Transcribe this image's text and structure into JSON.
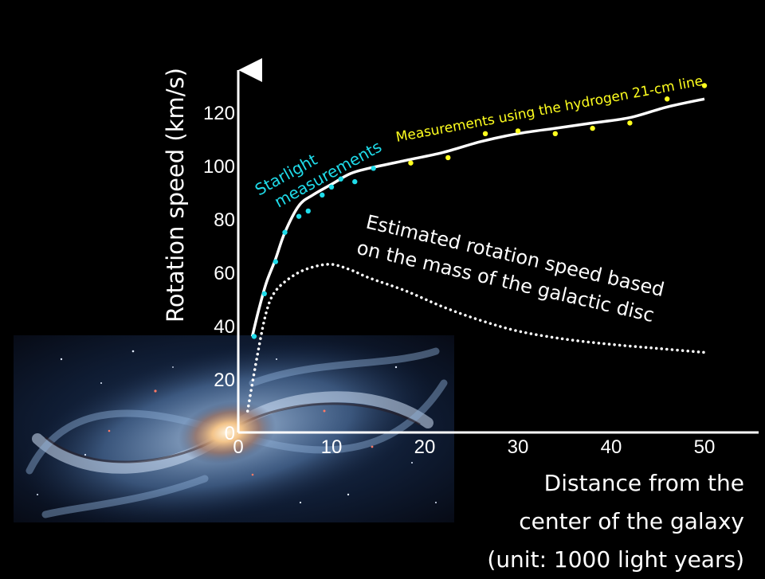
{
  "colors": {
    "background": "#000000",
    "axis": "#ffffff",
    "observed_curve": "#ffffff",
    "starlight_points": "#1fdcea",
    "hydrogen_points": "#ffff1e",
    "estimated_curve": "#ffffff"
  },
  "chart_data": {
    "type": "line",
    "title": "",
    "xlabel": "Distance from the\ncenter of the galaxy\n(unit: 1000 light years)",
    "ylabel": "Rotation speed (km/s)",
    "xlim": [
      0,
      50
    ],
    "ylim": [
      0,
      130
    ],
    "x_ticks": [
      0,
      10,
      20,
      30,
      40,
      50
    ],
    "y_ticks": [
      0,
      20,
      40,
      60,
      80,
      100,
      120
    ],
    "grid": false,
    "annotations": {
      "starlight": "Starlight\nmeasurements",
      "hydrogen": "Measurements using the hydrogen 21-cm line",
      "estimated": "Estimated rotation speed based\non the mass of the galactic disc"
    },
    "series": [
      {
        "style": "solid-line",
        "x": [
          1.5,
          2.2,
          3,
          4,
          5,
          6.5,
          8,
          10,
          12,
          14,
          18,
          22,
          26,
          30,
          34,
          38,
          42,
          46,
          50
        ],
        "y": [
          36,
          46,
          56,
          65,
          75,
          85,
          89,
          93,
          97,
          99,
          102,
          105,
          109,
          112,
          114,
          116,
          118,
          122,
          125
        ]
      },
      {
        "style": "cyan-points",
        "x": [
          1.7,
          2.8,
          4,
          5,
          6.5,
          7.5,
          9,
          10,
          11,
          12.5,
          14.5
        ],
        "y": [
          36,
          52,
          64,
          75,
          81,
          83,
          89,
          92,
          95,
          94,
          99
        ]
      },
      {
        "style": "yellow-points",
        "x": [
          18.5,
          22.5,
          26.5,
          30,
          34,
          38,
          42,
          46,
          50
        ],
        "y": [
          101,
          103,
          112,
          113,
          112,
          114,
          116,
          125,
          130
        ]
      },
      {
        "style": "dotted-line",
        "x": [
          1,
          2,
          3,
          4,
          6,
          8,
          10,
          12,
          14,
          18,
          22,
          26,
          30,
          35,
          40,
          45,
          50
        ],
        "y": [
          8,
          28,
          45,
          53,
          59,
          62,
          63,
          61,
          58,
          53,
          47,
          42,
          38,
          35,
          33,
          31.5,
          30
        ]
      }
    ]
  }
}
